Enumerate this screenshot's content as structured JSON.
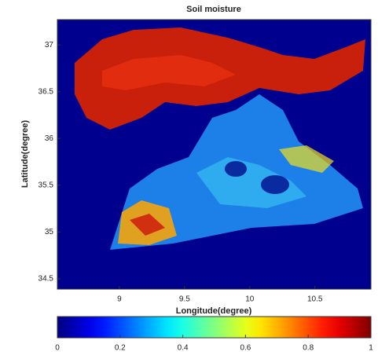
{
  "chart_data": {
    "type": "heatmap",
    "title": "Soil moisture",
    "xlabel": "Longitude(degree)",
    "ylabel": "Latitude(degree)",
    "xlim": [
      8.524,
      10.93
    ],
    "xticks": [
      9,
      9.5,
      10,
      10.5
    ],
    "ylim": [
      34.39,
      37.27
    ],
    "yticks": [
      34.5,
      35,
      35.5,
      36,
      36.5,
      37
    ],
    "colormap": "jet",
    "clim": [
      0,
      1
    ],
    "cticks": [
      0,
      0.2,
      0.4,
      0.6,
      0.8,
      1
    ]
  }
}
